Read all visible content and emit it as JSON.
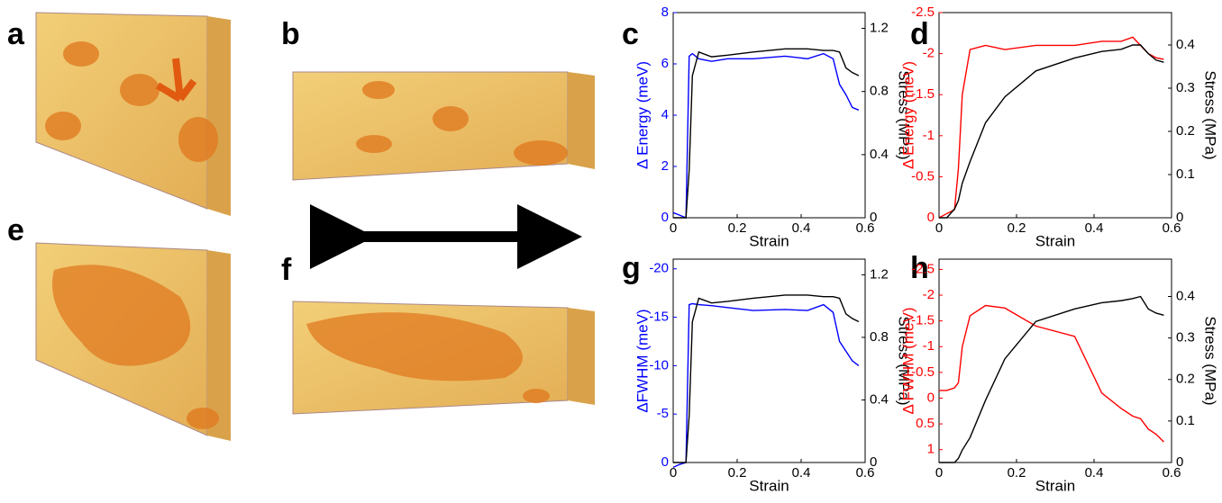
{
  "image_panels": [
    "a",
    "b",
    "e",
    "f"
  ],
  "chart_data": [
    {
      "type": "line",
      "panel": "c",
      "xlabel": "Strain",
      "ylabel": "Δ Energy (meV)",
      "y2label": "Stress (MPa)",
      "ylabel_color": "#0000ff",
      "xlim": [
        0,
        0.6
      ],
      "xticks": [
        0,
        0.2,
        0.4,
        0.6
      ],
      "ylim": [
        0,
        8
      ],
      "yticks": [
        0,
        2,
        4,
        6,
        8
      ],
      "y2lim": [
        0,
        1.3
      ],
      "y2ticks": [
        0,
        0.4,
        0.8,
        1.2
      ],
      "x": [
        0,
        0.02,
        0.04,
        0.05,
        0.06,
        0.08,
        0.12,
        0.17,
        0.25,
        0.35,
        0.42,
        0.47,
        0.5,
        0.52,
        0.54,
        0.56,
        0.58
      ],
      "series": [
        {
          "color": "#0000ff",
          "values": [
            0.2,
            0.1,
            0,
            6.3,
            6.4,
            6.2,
            6.1,
            6.2,
            6.2,
            6.3,
            6.2,
            6.4,
            6.2,
            5.2,
            4.8,
            4.3,
            4.2
          ]
        },
        {
          "color": "#000000",
          "axis": "y2",
          "values": [
            0,
            0,
            0,
            0.3,
            0.9,
            1.05,
            1.02,
            1.03,
            1.05,
            1.07,
            1.07,
            1.06,
            1.06,
            1.05,
            0.95,
            0.92,
            0.9
          ]
        }
      ]
    },
    {
      "type": "line",
      "panel": "d",
      "xlabel": "Strain",
      "ylabel": "Δ Energy (meV)",
      "y2label": "Stress (MPa)",
      "ylabel_color": "#ff0000",
      "xlim": [
        0,
        0.6
      ],
      "xticks": [
        0,
        0.2,
        0.4,
        0.6
      ],
      "ylim": [
        0,
        -2.5
      ],
      "yticks": [
        0,
        -0.5,
        -1,
        -1.5,
        -2,
        -2.5
      ],
      "y2lim": [
        0,
        0.475
      ],
      "y2ticks": [
        0,
        0.1,
        0.2,
        0.3,
        0.4
      ],
      "x": [
        0,
        0.02,
        0.04,
        0.05,
        0.06,
        0.08,
        0.12,
        0.17,
        0.25,
        0.35,
        0.42,
        0.47,
        0.5,
        0.52,
        0.54,
        0.56,
        0.58
      ],
      "series": [
        {
          "color": "#ff0000",
          "values": [
            0,
            -0.05,
            -0.1,
            -0.6,
            -1.5,
            -2.05,
            -2.1,
            -2.05,
            -2.1,
            -2.1,
            -2.15,
            -2.15,
            -2.2,
            -2.1,
            -2,
            -1.95,
            -1.93
          ]
        },
        {
          "color": "#000000",
          "axis": "y2",
          "values": [
            0,
            0,
            0.02,
            0.04,
            0.08,
            0.13,
            0.22,
            0.28,
            0.34,
            0.37,
            0.385,
            0.39,
            0.4,
            0.4,
            0.38,
            0.365,
            0.36
          ]
        }
      ]
    },
    {
      "type": "line",
      "panel": "g",
      "xlabel": "Strain",
      "ylabel": "ΔFWHM (meV)",
      "y2label": "Stress (MPa)",
      "ylabel_color": "#0000ff",
      "xlim": [
        0,
        0.6
      ],
      "xticks": [
        0,
        0.2,
        0.4,
        0.6
      ],
      "ylim": [
        0,
        -21
      ],
      "yticks": [
        0,
        -5,
        -10,
        -15,
        -20
      ],
      "y2lim": [
        0,
        1.3
      ],
      "y2ticks": [
        0,
        0.4,
        0.8,
        1.2
      ],
      "x": [
        0,
        0.02,
        0.04,
        0.05,
        0.06,
        0.08,
        0.12,
        0.17,
        0.25,
        0.35,
        0.42,
        0.47,
        0.5,
        0.52,
        0.54,
        0.56,
        0.58
      ],
      "series": [
        {
          "color": "#0000ff",
          "values": [
            0.5,
            0.2,
            0,
            -16.3,
            -16.4,
            -16.3,
            -16.2,
            -16,
            -15.7,
            -15.8,
            -15.7,
            -16.3,
            -15.5,
            -12.5,
            -11.5,
            -10.5,
            -10
          ]
        },
        {
          "color": "#000000",
          "axis": "y2",
          "values": [
            0,
            0,
            0,
            0.3,
            0.9,
            1.05,
            1.02,
            1.03,
            1.05,
            1.07,
            1.07,
            1.06,
            1.06,
            1.05,
            0.95,
            0.92,
            0.9
          ]
        }
      ]
    },
    {
      "type": "line",
      "panel": "h",
      "xlabel": "Strain",
      "ylabel": "Δ FWHM (meV)",
      "y2label": "Stress (MPa)",
      "ylabel_color": "#ff0000",
      "xlim": [
        0,
        0.6
      ],
      "xticks": [
        0,
        0.2,
        0.4,
        0.6
      ],
      "ylim": [
        1.25,
        -2.7
      ],
      "yticks": [
        1,
        0.5,
        0,
        -0.5,
        -1,
        -1.5,
        -2,
        -2.5
      ],
      "y2lim": [
        0,
        0.49
      ],
      "y2ticks": [
        0,
        0.1,
        0.2,
        0.3,
        0.4
      ],
      "x": [
        0,
        0.02,
        0.04,
        0.05,
        0.06,
        0.08,
        0.12,
        0.17,
        0.25,
        0.35,
        0.42,
        0.47,
        0.5,
        0.52,
        0.54,
        0.56,
        0.58
      ],
      "series": [
        {
          "color": "#ff0000",
          "values": [
            -0.15,
            -0.15,
            -0.2,
            -0.3,
            -1,
            -1.6,
            -1.8,
            -1.75,
            -1.4,
            -1.2,
            -0.1,
            0.2,
            0.35,
            0.4,
            0.6,
            0.7,
            0.85
          ]
        },
        {
          "color": "#000000",
          "axis": "y2",
          "values": [
            0,
            0,
            0,
            0.01,
            0.03,
            0.06,
            0.15,
            0.25,
            0.34,
            0.37,
            0.385,
            0.39,
            0.395,
            0.4,
            0.37,
            0.36,
            0.355
          ]
        }
      ]
    }
  ]
}
